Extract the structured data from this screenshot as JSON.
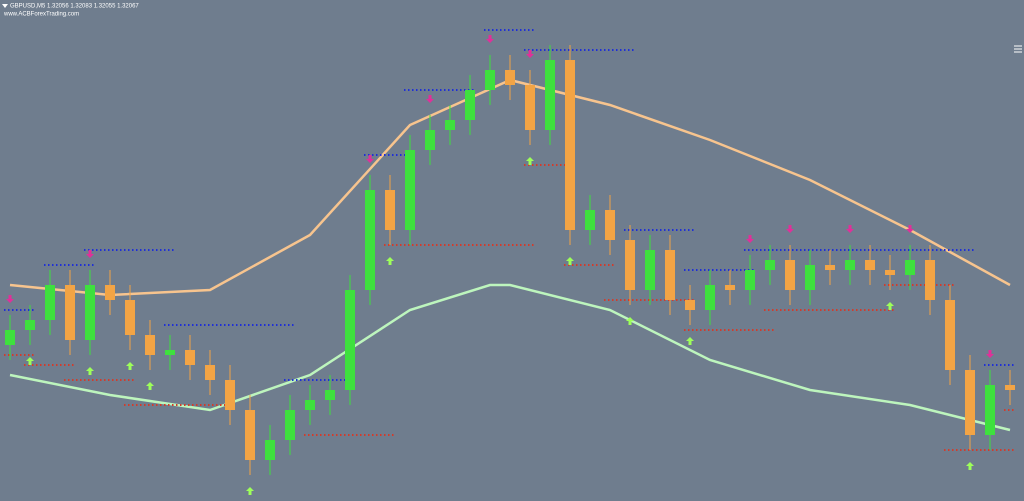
{
  "chart_data": {
    "type": "candlestick",
    "title": "GBPUSD,M5  1.32056 1.32083 1.32055 1.32067",
    "subtitle": "www.ACBForexTrading.com",
    "background": "#6f7d8e",
    "up_color": "#3ee03e",
    "down_color": "#f2a445",
    "ylim": [
      1.315,
      1.325
    ],
    "open": [
      1.3181,
      1.3184,
      1.3186,
      1.3193,
      1.3182,
      1.3193,
      1.319,
      1.3183,
      1.3179,
      1.318,
      1.3177,
      1.3174,
      1.3168,
      1.3158,
      1.3162,
      1.3168,
      1.317,
      1.3172,
      1.3192,
      1.3212,
      1.3204,
      1.322,
      1.3224,
      1.3226,
      1.3232,
      1.3236,
      1.3233,
      1.3224,
      1.3238,
      1.3204,
      1.3208,
      1.3202,
      1.3192,
      1.32,
      1.319,
      1.3188,
      1.3193,
      1.3192,
      1.3196,
      1.3198,
      1.3192,
      1.3197,
      1.3196,
      1.3198,
      1.3196,
      1.3195,
      1.3198,
      1.319,
      1.3176,
      1.3163,
      1.3173
    ],
    "high": [
      1.3187,
      1.3189,
      1.3196,
      1.3196,
      1.3196,
      1.3196,
      1.3193,
      1.3186,
      1.3183,
      1.3183,
      1.318,
      1.3177,
      1.3171,
      1.3165,
      1.3171,
      1.3173,
      1.3175,
      1.3195,
      1.3215,
      1.3215,
      1.3223,
      1.3227,
      1.3229,
      1.3235,
      1.3239,
      1.3239,
      1.3236,
      1.3241,
      1.3241,
      1.3211,
      1.3211,
      1.3205,
      1.3203,
      1.3203,
      1.3193,
      1.3196,
      1.3196,
      1.3199,
      1.3201,
      1.3201,
      1.32,
      1.32,
      1.3201,
      1.3201,
      1.3199,
      1.3201,
      1.3201,
      1.3193,
      1.3179,
      1.3176,
      1.3176
    ],
    "low": [
      1.3178,
      1.3181,
      1.3183,
      1.3179,
      1.3179,
      1.3187,
      1.318,
      1.3176,
      1.3176,
      1.3174,
      1.3171,
      1.3165,
      1.3155,
      1.3155,
      1.3159,
      1.3165,
      1.3167,
      1.3169,
      1.3189,
      1.3201,
      1.3201,
      1.3217,
      1.3221,
      1.3223,
      1.3229,
      1.323,
      1.3221,
      1.3221,
      1.3201,
      1.3201,
      1.3199,
      1.3189,
      1.3189,
      1.3187,
      1.3185,
      1.3185,
      1.3189,
      1.3189,
      1.3193,
      1.3189,
      1.3189,
      1.3193,
      1.3193,
      1.3193,
      1.3192,
      1.3192,
      1.3187,
      1.3173,
      1.316,
      1.316,
      1.3169
    ],
    "close": [
      1.3184,
      1.3186,
      1.3193,
      1.3182,
      1.3193,
      1.319,
      1.3183,
      1.3179,
      1.318,
      1.3177,
      1.3174,
      1.3168,
      1.3158,
      1.3162,
      1.3168,
      1.317,
      1.3172,
      1.3192,
      1.3212,
      1.3204,
      1.322,
      1.3224,
      1.3226,
      1.3232,
      1.3236,
      1.3233,
      1.3224,
      1.3238,
      1.3204,
      1.3208,
      1.3202,
      1.3192,
      1.32,
      1.319,
      1.3188,
      1.3193,
      1.3192,
      1.3196,
      1.3198,
      1.3192,
      1.3197,
      1.3196,
      1.3198,
      1.3196,
      1.3195,
      1.3198,
      1.319,
      1.3176,
      1.3163,
      1.3173,
      1.3172
    ],
    "series": [
      {
        "color": "#f7c48e",
        "x": [
          0,
          5,
          10,
          15,
          20,
          25,
          30,
          35,
          40,
          45,
          50
        ],
        "values": [
          1.3193,
          1.3191,
          1.3192,
          1.3203,
          1.3225,
          1.3234,
          1.3229,
          1.3222,
          1.3214,
          1.3204,
          1.3193
        ]
      },
      {
        "color": "#bdf5bd",
        "x": [
          0,
          5,
          10,
          15,
          20,
          24,
          25,
          30,
          35,
          40,
          45,
          50
        ],
        "values": [
          1.3175,
          1.3171,
          1.3168,
          1.3175,
          1.3188,
          1.3193,
          1.3193,
          1.3188,
          1.3178,
          1.3172,
          1.3169,
          1.3164
        ]
      }
    ],
    "resistance_color": "#1f2fd6",
    "support_color": "#d23b2b",
    "resistance": [
      {
        "from": 0,
        "to": 1,
        "value": 1.3188
      },
      {
        "from": 2,
        "to": 4,
        "value": 1.3197
      },
      {
        "from": 4,
        "to": 8,
        "value": 1.32
      },
      {
        "from": 8,
        "to": 14,
        "value": 1.3185
      },
      {
        "from": 14,
        "to": 17,
        "value": 1.3174
      },
      {
        "from": 18,
        "to": 20,
        "value": 1.3219
      },
      {
        "from": 20,
        "to": 23,
        "value": 1.3232
      },
      {
        "from": 24,
        "to": 26,
        "value": 1.3244
      },
      {
        "from": 26,
        "to": 31,
        "value": 1.324
      },
      {
        "from": 31,
        "to": 34,
        "value": 1.3204
      },
      {
        "from": 34,
        "to": 37,
        "value": 1.3196
      },
      {
        "from": 37,
        "to": 45,
        "value": 1.32
      },
      {
        "from": 45,
        "to": 48,
        "value": 1.32
      },
      {
        "from": 49,
        "to": 50,
        "value": 1.3177
      }
    ],
    "support": [
      {
        "from": 0,
        "to": 1,
        "value": 1.3179
      },
      {
        "from": 1,
        "to": 3,
        "value": 1.3177
      },
      {
        "from": 3,
        "to": 6,
        "value": 1.3174
      },
      {
        "from": 6,
        "to": 11,
        "value": 1.3169
      },
      {
        "from": 15,
        "to": 19,
        "value": 1.3163
      },
      {
        "from": 19,
        "to": 26,
        "value": 1.3201
      },
      {
        "from": 26,
        "to": 28,
        "value": 1.3217
      },
      {
        "from": 28,
        "to": 30,
        "value": 1.3197
      },
      {
        "from": 30,
        "to": 34,
        "value": 1.319
      },
      {
        "from": 34,
        "to": 38,
        "value": 1.3184
      },
      {
        "from": 38,
        "to": 44,
        "value": 1.3188
      },
      {
        "from": 44,
        "to": 47,
        "value": 1.3193
      },
      {
        "from": 47,
        "to": 50,
        "value": 1.316
      },
      {
        "from": 50,
        "to": 50,
        "value": 1.3168
      }
    ],
    "buy_signal_color": "#9dff5a",
    "sell_signal_color": "#e0309a",
    "buy_signals": [
      1,
      4,
      6,
      7,
      12,
      19,
      26,
      28,
      31,
      34,
      44,
      48
    ],
    "sell_signals": [
      0,
      4,
      18,
      21,
      24,
      26,
      37,
      39,
      42,
      45,
      49
    ]
  }
}
